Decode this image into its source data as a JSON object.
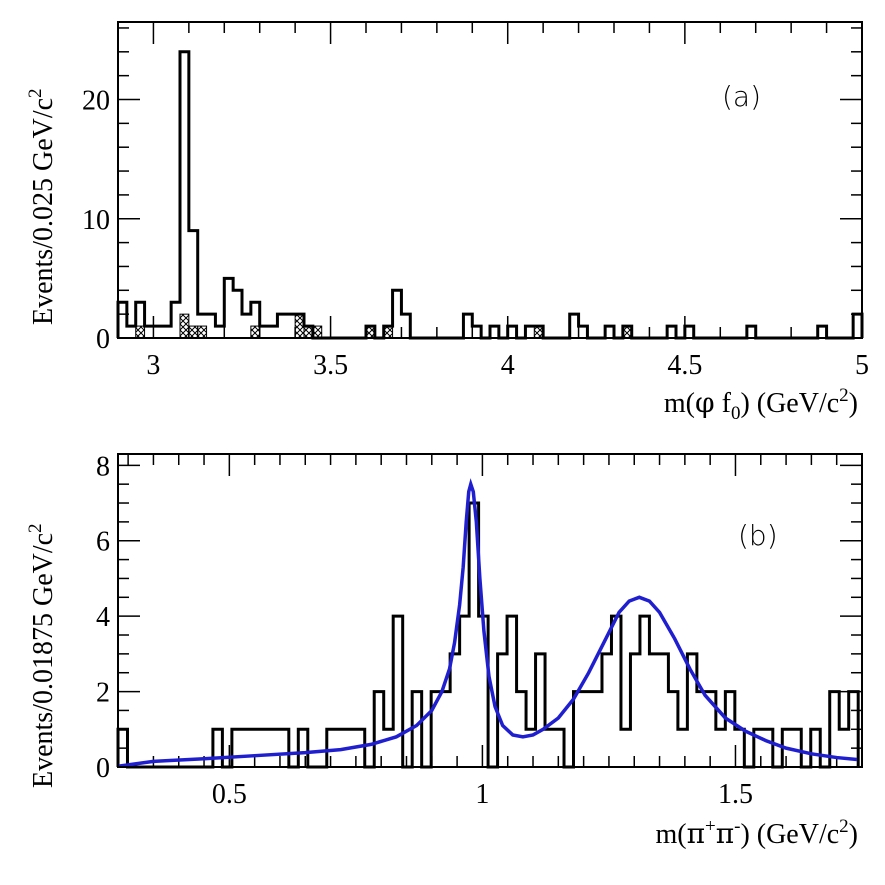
{
  "chart_data": [
    {
      "id": "a",
      "type": "histogram",
      "panel_label": "(a)",
      "xlabel_parts": [
        "m(",
        "φ",
        " f",
        "0",
        ") (GeV/c",
        "2",
        ")"
      ],
      "ylabel_parts": [
        "Events/0.025 GeV/c",
        "2"
      ],
      "xlim": [
        2.9,
        5.0
      ],
      "ylim": [
        0,
        26.5
      ],
      "bin_width": 0.025,
      "x_ticks": [
        3,
        3.5,
        4,
        4.5,
        5
      ],
      "x_tick_labels": [
        "3",
        "3.5",
        "4",
        "4.5",
        "5"
      ],
      "y_ticks": [
        0,
        10,
        20
      ],
      "y_tick_labels": [
        "0",
        "10",
        "20"
      ],
      "x_minor_step": 0.1,
      "y_minor_step": 2,
      "series": [
        {
          "x": [
            2.9125,
            2.9375,
            2.9625,
            2.9875,
            3.0125,
            3.0375,
            3.0625,
            3.0875,
            3.1125,
            3.1375,
            3.1625,
            3.1875,
            3.2125,
            3.2375,
            3.2625,
            3.2875,
            3.3125,
            3.3375,
            3.3625,
            3.3875,
            3.4125,
            3.4375,
            3.4625,
            3.4875,
            3.5125,
            3.5375,
            3.5625,
            3.5875,
            3.6125,
            3.6375,
            3.6625,
            3.6875,
            3.7125,
            3.7375,
            3.7625,
            3.7875,
            3.8125,
            3.8375,
            3.8625,
            3.8875,
            3.9125,
            3.9375,
            3.9625,
            3.9875,
            4.0125,
            4.0375,
            4.0625,
            4.0875,
            4.1125,
            4.1375,
            4.1625,
            4.1875,
            4.2125,
            4.2375,
            4.2625,
            4.2875,
            4.3125,
            4.3375,
            4.3625,
            4.3875,
            4.4125,
            4.4375,
            4.4625,
            4.4875,
            4.5125,
            4.5375,
            4.5625,
            4.5875,
            4.6125,
            4.6375,
            4.6625,
            4.6875,
            4.7125,
            4.7375,
            4.7625,
            4.7875,
            4.8125,
            4.8375,
            4.8625,
            4.8875,
            4.9125,
            4.9375,
            4.9625,
            4.9875
          ],
          "y": [
            3,
            1,
            3,
            1,
            1,
            1,
            3,
            24,
            9,
            2,
            2,
            1,
            5,
            4,
            2,
            3,
            1,
            1,
            2,
            2,
            2,
            1,
            0,
            0,
            0,
            0,
            0,
            0,
            1,
            0,
            1,
            4,
            2,
            0,
            0,
            0,
            0,
            0,
            0,
            2,
            1,
            0,
            1,
            0,
            1,
            0,
            1,
            1,
            0,
            0,
            0,
            2,
            1,
            0,
            0,
            1,
            0,
            1,
            0,
            0,
            0,
            0,
            1,
            0,
            1,
            0,
            0,
            0,
            0,
            0,
            0,
            1,
            0,
            0,
            0,
            0,
            0,
            0,
            0,
            1,
            0,
            0,
            0,
            2
          ]
        }
      ],
      "background_x": [
        2.9625,
        3.0875,
        3.1125,
        3.1375,
        3.2875,
        3.4125,
        3.4375,
        3.4625,
        3.6125,
        3.6625,
        4.0875,
        4.3375
      ],
      "background_y": [
        1,
        2,
        1,
        1,
        1,
        2,
        1,
        1,
        1,
        1,
        1,
        1
      ]
    },
    {
      "id": "b",
      "type": "histogram",
      "panel_label": "(b)",
      "xlabel_parts": [
        "m(",
        "π",
        "+",
        "π",
        "-",
        ") (GeV/c",
        "2",
        ")"
      ],
      "ylabel_parts": [
        "Events/0.01875 GeV/c",
        "2"
      ],
      "xlim": [
        0.28,
        1.75
      ],
      "ylim": [
        0,
        8.3
      ],
      "bin_width": 0.01875,
      "x_ticks": [
        0.5,
        1,
        1.5
      ],
      "x_tick_labels": [
        "0.5",
        "1",
        "1.5"
      ],
      "y_ticks": [
        0,
        2,
        4,
        6,
        8
      ],
      "y_tick_labels": [
        "0",
        "2",
        "4",
        "6",
        "8"
      ],
      "x_minor_step": 0.05,
      "y_minor_step": 0.5,
      "series": [
        {
          "x": [
            0.2894,
            0.3081,
            0.3269,
            0.3456,
            0.3644,
            0.3831,
            0.4019,
            0.4206,
            0.4394,
            0.4581,
            0.4769,
            0.4956,
            0.5144,
            0.5331,
            0.5519,
            0.5706,
            0.5894,
            0.6081,
            0.6269,
            0.6456,
            0.6644,
            0.6831,
            0.7019,
            0.7206,
            0.7394,
            0.7581,
            0.7769,
            0.7956,
            0.8144,
            0.8331,
            0.8519,
            0.8706,
            0.8894,
            0.9081,
            0.9269,
            0.9456,
            0.9644,
            0.9831,
            1.0019,
            1.0206,
            1.0394,
            1.0581,
            1.0769,
            1.0956,
            1.1144,
            1.1331,
            1.1519,
            1.1706,
            1.1894,
            1.2081,
            1.2269,
            1.2456,
            1.2644,
            1.2831,
            1.3019,
            1.3206,
            1.3394,
            1.3581,
            1.3769,
            1.3956,
            1.4144,
            1.4331,
            1.4519,
            1.4706,
            1.4894,
            1.5081,
            1.5269,
            1.5456,
            1.5644,
            1.5831,
            1.6019,
            1.6206,
            1.6394,
            1.6581,
            1.6769,
            1.6956,
            1.7144,
            1.7331
          ],
          "y": [
            1,
            0,
            0,
            0,
            0,
            0,
            0,
            0,
            0,
            0,
            1,
            0,
            1,
            1,
            1,
            1,
            1,
            1,
            0,
            1,
            0,
            0,
            1,
            1,
            1,
            1,
            0,
            2,
            1,
            4,
            0,
            2,
            0,
            2,
            2,
            3,
            4,
            7,
            4,
            0,
            3,
            4,
            2,
            1,
            3,
            1,
            1,
            0,
            2,
            2,
            2,
            3,
            4,
            1,
            3,
            4,
            3,
            3,
            2,
            1,
            3,
            2,
            2,
            1,
            2,
            1,
            0,
            1,
            1,
            0,
            1,
            1,
            0,
            1,
            0,
            2,
            1,
            2
          ]
        }
      ],
      "fit_curve": {
        "color": "#1f1fd0",
        "x": [
          0.28,
          0.35,
          0.45,
          0.55,
          0.65,
          0.72,
          0.78,
          0.83,
          0.87,
          0.9,
          0.92,
          0.935,
          0.945,
          0.955,
          0.962,
          0.968,
          0.973,
          0.977,
          0.982,
          0.988,
          0.995,
          1.003,
          1.013,
          1.025,
          1.04,
          1.06,
          1.08,
          1.1,
          1.12,
          1.15,
          1.18,
          1.21,
          1.24,
          1.27,
          1.29,
          1.31,
          1.33,
          1.35,
          1.38,
          1.41,
          1.44,
          1.48,
          1.52,
          1.56,
          1.6,
          1.65,
          1.7,
          1.74
        ],
        "y": [
          0.02,
          0.15,
          0.22,
          0.3,
          0.38,
          0.46,
          0.6,
          0.8,
          1.1,
          1.5,
          2.0,
          2.6,
          3.3,
          4.3,
          5.3,
          6.5,
          7.3,
          7.5,
          7.3,
          6.5,
          5.0,
          3.6,
          2.4,
          1.6,
          1.1,
          0.85,
          0.8,
          0.85,
          1.0,
          1.3,
          1.8,
          2.5,
          3.3,
          4.1,
          4.4,
          4.5,
          4.4,
          4.1,
          3.4,
          2.6,
          1.9,
          1.3,
          0.95,
          0.7,
          0.5,
          0.35,
          0.25,
          0.2
        ]
      }
    }
  ]
}
